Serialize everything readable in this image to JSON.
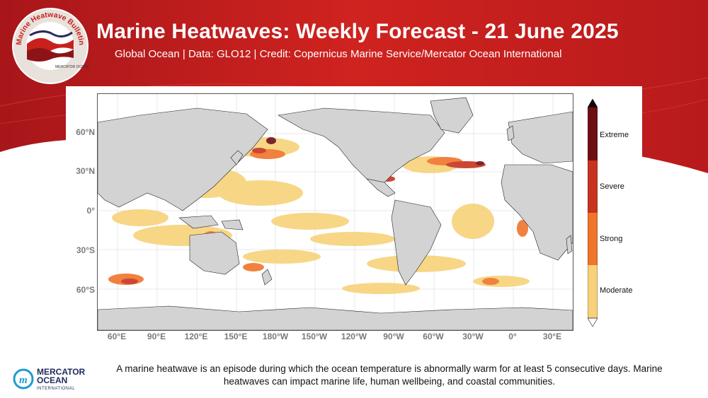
{
  "header": {
    "title": "Marine Heatwaves: Weekly Forecast - 21 June 2025",
    "subtitle": "Global Ocean | Data: GLO12 | Credit: Copernicus Marine Service/Mercator Ocean International",
    "logo_text": "Marine Heatwave Bulletin",
    "logo_small_text": "MERCATOR OCEAN"
  },
  "map": {
    "lat_ticks": [
      "60°N",
      "30°N",
      "0°",
      "30°S",
      "60°S"
    ],
    "lon_ticks": [
      "60°E",
      "90°E",
      "120°E",
      "150°E",
      "180°W",
      "150°W",
      "120°W",
      "90°W",
      "60°W",
      "30°W",
      "0°",
      "30°E"
    ]
  },
  "legend": {
    "categories": [
      {
        "label": "Extreme",
        "color": "#6e0f12"
      },
      {
        "label": "Severe",
        "color": "#c8321e"
      },
      {
        "label": "Strong",
        "color": "#f0742a"
      },
      {
        "label": "Moderate",
        "color": "#f7d27a"
      }
    ]
  },
  "colors": {
    "brand_red": "#c8201d",
    "land": "#d3d3d3",
    "ocean": "#ffffff"
  },
  "footer": {
    "logo_line1": "MERCATOR",
    "logo_line2": "OCEAN",
    "logo_line3": "INTERNATIONAL",
    "text": "A marine heatwave is an episode during which the ocean temperature is abnormally warm for at least 5 consecutive days. Marine heatwaves can impact marine life, human wellbeing, and coastal communities."
  }
}
